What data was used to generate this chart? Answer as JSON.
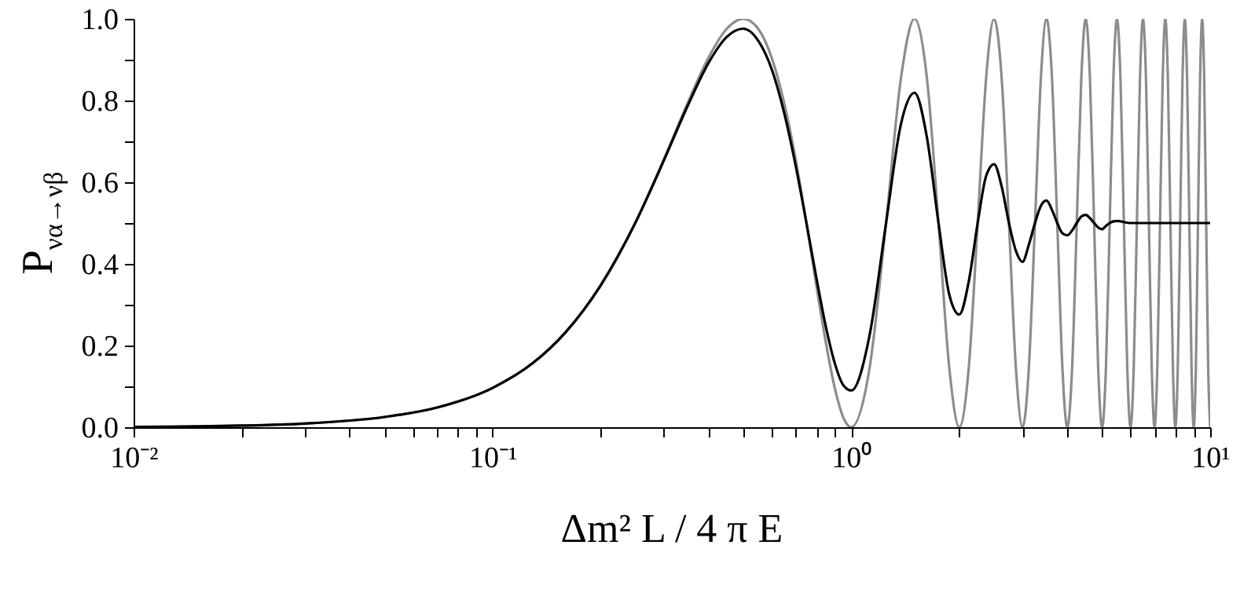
{
  "chart_data": {
    "type": "line",
    "xlabel": "Δm² L / 4 π E",
    "ylabel": "P$_{να→νβ}$",
    "log": "x",
    "xlim": [
      0.01,
      10
    ],
    "xticks": [
      {
        "value": 0.01,
        "label": "10⁻²"
      },
      {
        "value": 0.02,
        "label": null
      },
      {
        "value": 0.03,
        "label": null
      },
      {
        "value": 0.04,
        "label": null
      },
      {
        "value": 0.05,
        "label": null
      },
      {
        "value": 0.06,
        "label": null
      },
      {
        "value": 0.07,
        "label": null
      },
      {
        "value": 0.08,
        "label": null
      },
      {
        "value": 0.09,
        "label": null
      },
      {
        "value": 0.1,
        "label": "10⁻¹"
      },
      {
        "value": 0.2,
        "label": null
      },
      {
        "value": 0.3,
        "label": null
      },
      {
        "value": 0.4,
        "label": null
      },
      {
        "value": 0.5,
        "label": null
      },
      {
        "value": 0.6,
        "label": null
      },
      {
        "value": 0.7,
        "label": null
      },
      {
        "value": 0.8,
        "label": null
      },
      {
        "value": 0.9,
        "label": null
      },
      {
        "value": 1,
        "label": "10⁰"
      },
      {
        "value": 2,
        "label": null
      },
      {
        "value": 3,
        "label": null
      },
      {
        "value": 4,
        "label": null
      },
      {
        "value": 5,
        "label": null
      },
      {
        "value": 6,
        "label": null
      },
      {
        "value": 7,
        "label": null
      },
      {
        "value": 8,
        "label": null
      },
      {
        "value": 9,
        "label": null
      },
      {
        "value": 10,
        "label": "10¹"
      }
    ],
    "ylim": [
      0,
      1
    ],
    "yticks": [
      {
        "value": 0,
        "label": "0.0"
      },
      {
        "value": 0.1,
        "label": null
      },
      {
        "value": 0.2,
        "label": "0.2"
      },
      {
        "value": 0.3,
        "label": null
      },
      {
        "value": 0.4,
        "label": "0.4"
      },
      {
        "value": 0.5,
        "label": null
      },
      {
        "value": 0.6,
        "label": "0.6"
      },
      {
        "value": 0.7,
        "label": null
      },
      {
        "value": 0.8,
        "label": "0.8"
      },
      {
        "value": 0.9,
        "label": null
      },
      {
        "value": 1,
        "label": "1.0"
      }
    ],
    "series": [
      {
        "color": "#8c8c8c",
        "x": [
          0.01,
          0.02,
          0.03,
          0.05,
          0.07,
          0.1,
          0.13,
          0.16,
          0.2,
          0.25,
          0.3,
          0.35,
          0.4,
          0.45,
          0.5,
          0.55,
          0.6,
          0.65,
          0.7,
          0.75,
          0.8,
          0.85,
          0.9,
          0.95,
          1,
          1.125,
          1.25,
          1.375,
          1.5,
          1.625,
          1.75,
          1.875,
          2,
          2.125,
          2.25,
          2.375,
          2.5,
          2.625,
          2.75,
          2.875,
          3,
          3.125,
          3.25,
          3.375,
          3.5,
          3.625,
          3.75,
          3.875,
          4,
          4.125,
          4.25,
          4.375,
          4.5,
          4.625,
          4.75,
          4.875,
          5,
          5.125,
          5.25,
          5.375,
          5.5,
          5.625,
          5.75,
          5.875,
          6,
          6.125,
          6.25,
          6.375,
          6.5,
          6.625,
          6.75,
          6.875,
          7,
          7.125,
          7.25,
          7.375,
          7.5,
          7.625,
          7.75,
          7.875,
          8,
          8.125,
          8.25,
          8.375,
          8.5,
          8.625,
          8.75,
          8.875,
          9,
          9.125,
          9.25,
          9.375,
          9.5,
          9.625,
          9.75,
          9.875,
          10
        ],
        "values": [
          0.001,
          0.004,
          0.009,
          0.025,
          0.048,
          0.096,
          0.158,
          0.232,
          0.345,
          0.5,
          0.655,
          0.794,
          0.905,
          0.976,
          1,
          0.976,
          0.905,
          0.794,
          0.655,
          0.5,
          0.345,
          0.206,
          0.095,
          0.024,
          0,
          0.146,
          0.5,
          0.854,
          1,
          0.854,
          0.5,
          0.146,
          0,
          0.146,
          0.5,
          0.854,
          1,
          0.854,
          0.5,
          0.146,
          0,
          0.146,
          0.5,
          0.854,
          1,
          0.854,
          0.5,
          0.146,
          0,
          0.146,
          0.5,
          0.854,
          1,
          0.854,
          0.5,
          0.146,
          0,
          0.146,
          0.5,
          0.854,
          1,
          0.854,
          0.5,
          0.146,
          0,
          0.146,
          0.5,
          0.854,
          1,
          0.854,
          0.5,
          0.146,
          0,
          0.146,
          0.5,
          0.854,
          1,
          0.854,
          0.5,
          0.146,
          0,
          0.146,
          0.5,
          0.854,
          1,
          0.854,
          0.5,
          0.146,
          0,
          0.146,
          0.5,
          0.854,
          1,
          0.854,
          0.5,
          0.146,
          0
        ]
      },
      {
        "color": "#000000",
        "x": [
          0.01,
          0.02,
          0.03,
          0.05,
          0.07,
          0.1,
          0.13,
          0.16,
          0.2,
          0.25,
          0.3,
          0.35,
          0.4,
          0.45,
          0.5,
          0.55,
          0.6,
          0.65,
          0.7,
          0.75,
          0.8,
          0.85,
          0.9,
          0.95,
          1,
          1.125,
          1.25,
          1.375,
          1.5,
          1.625,
          1.75,
          1.875,
          2,
          2.125,
          2.25,
          2.375,
          2.5,
          2.625,
          2.75,
          2.875,
          3,
          3.125,
          3.25,
          3.375,
          3.5,
          3.625,
          3.75,
          3.875,
          4,
          4.125,
          4.25,
          4.375,
          4.5,
          4.625,
          4.75,
          4.875,
          5,
          5.125,
          5.25,
          5.375,
          5.5,
          6,
          7,
          8,
          9,
          10
        ],
        "values": [
          0.001,
          0.004,
          0.009,
          0.025,
          0.048,
          0.096,
          0.158,
          0.233,
          0.347,
          0.5,
          0.652,
          0.787,
          0.892,
          0.956,
          0.976,
          0.947,
          0.877,
          0.77,
          0.64,
          0.5,
          0.364,
          0.245,
          0.156,
          0.103,
          0.09,
          0.226,
          0.5,
          0.742,
          0.819,
          0.709,
          0.5,
          0.325,
          0.276,
          0.357,
          0.5,
          0.615,
          0.644,
          0.589,
          0.5,
          0.432,
          0.405,
          0.447,
          0.5,
          0.542,
          0.555,
          0.532,
          0.5,
          0.475,
          0.47,
          0.482,
          0.5,
          0.516,
          0.52,
          0.512,
          0.5,
          0.489,
          0.485,
          0.493,
          0.5,
          0.504,
          0.505,
          0.5,
          0.5,
          0.5,
          0.5,
          0.5
        ]
      }
    ]
  }
}
